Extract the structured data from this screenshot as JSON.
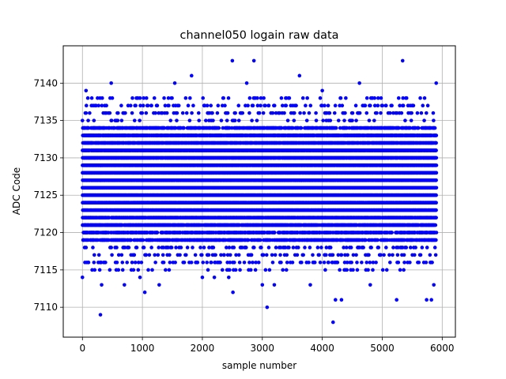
{
  "chart_data": {
    "type": "scatter",
    "title": "channel050 logain raw data",
    "xlabel": "sample number",
    "ylabel": "ADC Code",
    "xlim": [
      -320,
      6220
    ],
    "ylim": [
      7106,
      7145
    ],
    "xticks": [
      0,
      1000,
      2000,
      3000,
      4000,
      5000,
      6000
    ],
    "yticks": [
      7110,
      7115,
      7120,
      7125,
      7130,
      7135,
      7140
    ],
    "grid": true,
    "marker_color": "#0000ff",
    "n_samples": 5900,
    "series": [
      {
        "core_range": [
          7119,
          7134
        ],
        "points": [
          {
            "x": 0,
            "y": 7135
          },
          {
            "x": 0,
            "y": 7114
          },
          {
            "x": 60,
            "y": 7139
          },
          {
            "x": 300,
            "y": 7109
          },
          {
            "x": 320,
            "y": 7113
          },
          {
            "x": 480,
            "y": 7140
          },
          {
            "x": 700,
            "y": 7113
          },
          {
            "x": 960,
            "y": 7114
          },
          {
            "x": 1040,
            "y": 7112
          },
          {
            "x": 1280,
            "y": 7113
          },
          {
            "x": 1540,
            "y": 7140
          },
          {
            "x": 1820,
            "y": 7141
          },
          {
            "x": 2000,
            "y": 7114
          },
          {
            "x": 2200,
            "y": 7114
          },
          {
            "x": 2440,
            "y": 7114
          },
          {
            "x": 2500,
            "y": 7143
          },
          {
            "x": 2510,
            "y": 7112
          },
          {
            "x": 2740,
            "y": 7140
          },
          {
            "x": 2860,
            "y": 7143
          },
          {
            "x": 3000,
            "y": 7113
          },
          {
            "x": 3080,
            "y": 7110
          },
          {
            "x": 3200,
            "y": 7113
          },
          {
            "x": 3620,
            "y": 7141
          },
          {
            "x": 3800,
            "y": 7113
          },
          {
            "x": 4000,
            "y": 7139
          },
          {
            "x": 4180,
            "y": 7108
          },
          {
            "x": 4220,
            "y": 7111
          },
          {
            "x": 4320,
            "y": 7111
          },
          {
            "x": 4620,
            "y": 7140
          },
          {
            "x": 4800,
            "y": 7113
          },
          {
            "x": 5240,
            "y": 7111
          },
          {
            "x": 5340,
            "y": 7143
          },
          {
            "x": 5740,
            "y": 7111
          },
          {
            "x": 5820,
            "y": 7111
          },
          {
            "x": 5900,
            "y": 7140
          },
          {
            "x": 5860,
            "y": 7113
          },
          {
            "x": 400,
            "y": 7137
          },
          {
            "x": 1200,
            "y": 7138
          },
          {
            "x": 3400,
            "y": 7138
          },
          {
            "x": 4700,
            "y": 7137
          },
          {
            "x": 5500,
            "y": 7137
          }
        ]
      }
    ]
  }
}
